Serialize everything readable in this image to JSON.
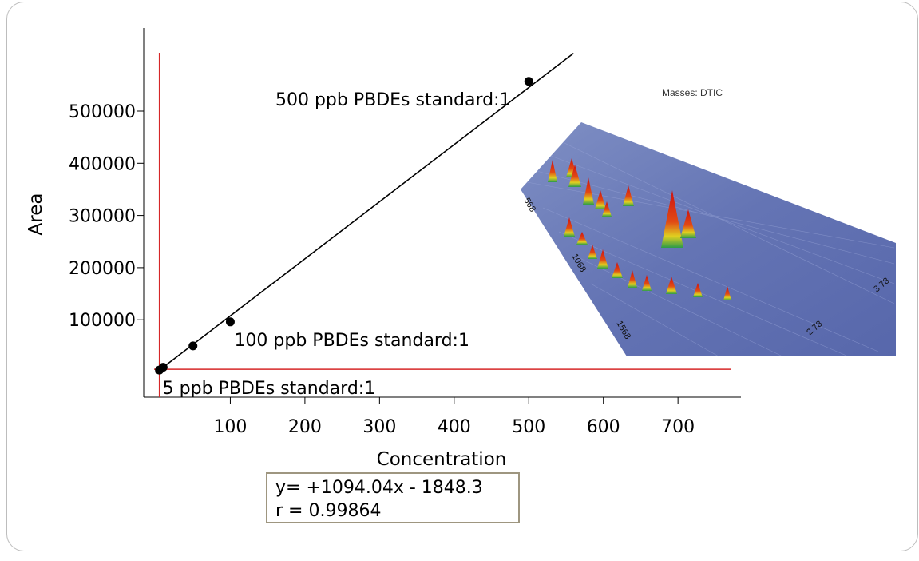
{
  "chart_data": {
    "type": "scatter",
    "xlabel": "Concentration",
    "ylabel": "Area",
    "xticks": [
      100,
      200,
      300,
      400,
      500,
      600,
      700
    ],
    "yticks": [
      100000,
      200000,
      300000,
      400000,
      500000
    ],
    "points": [
      {
        "x": 5,
        "y": 3600
      },
      {
        "x": 10,
        "y": 9000
      },
      {
        "x": 50,
        "y": 50000
      },
      {
        "x": 100,
        "y": 96000
      },
      {
        "x": 500,
        "y": 557000
      }
    ],
    "fit": {
      "slope": 1094.04,
      "intercept": -1848.3,
      "x_range": [
        0,
        560
      ]
    },
    "reference_lines": {
      "vertical_x": 5,
      "horizontal_y": 3600
    },
    "annotations": [
      {
        "text": "500 ppb PBDEs standard:1",
        "x": 500,
        "y": 557000
      },
      {
        "text": "100 ppb PBDEs standard:1",
        "x": 100,
        "y": 96000
      },
      {
        "text": "5 ppb PBDEs standard:1",
        "x": 5,
        "y": 3600
      }
    ],
    "equation": {
      "line1": "y= +1094.04x - 1848.3",
      "line2": "r = 0.99864"
    },
    "colors": {
      "reference": "#d62728",
      "points": "#000000",
      "fit": "#000000"
    }
  },
  "inset": {
    "title": "Masses: DTIC",
    "axis_left": [
      "568",
      "1068",
      "1568"
    ],
    "axis_right": [
      "2.78",
      "3.78"
    ]
  }
}
